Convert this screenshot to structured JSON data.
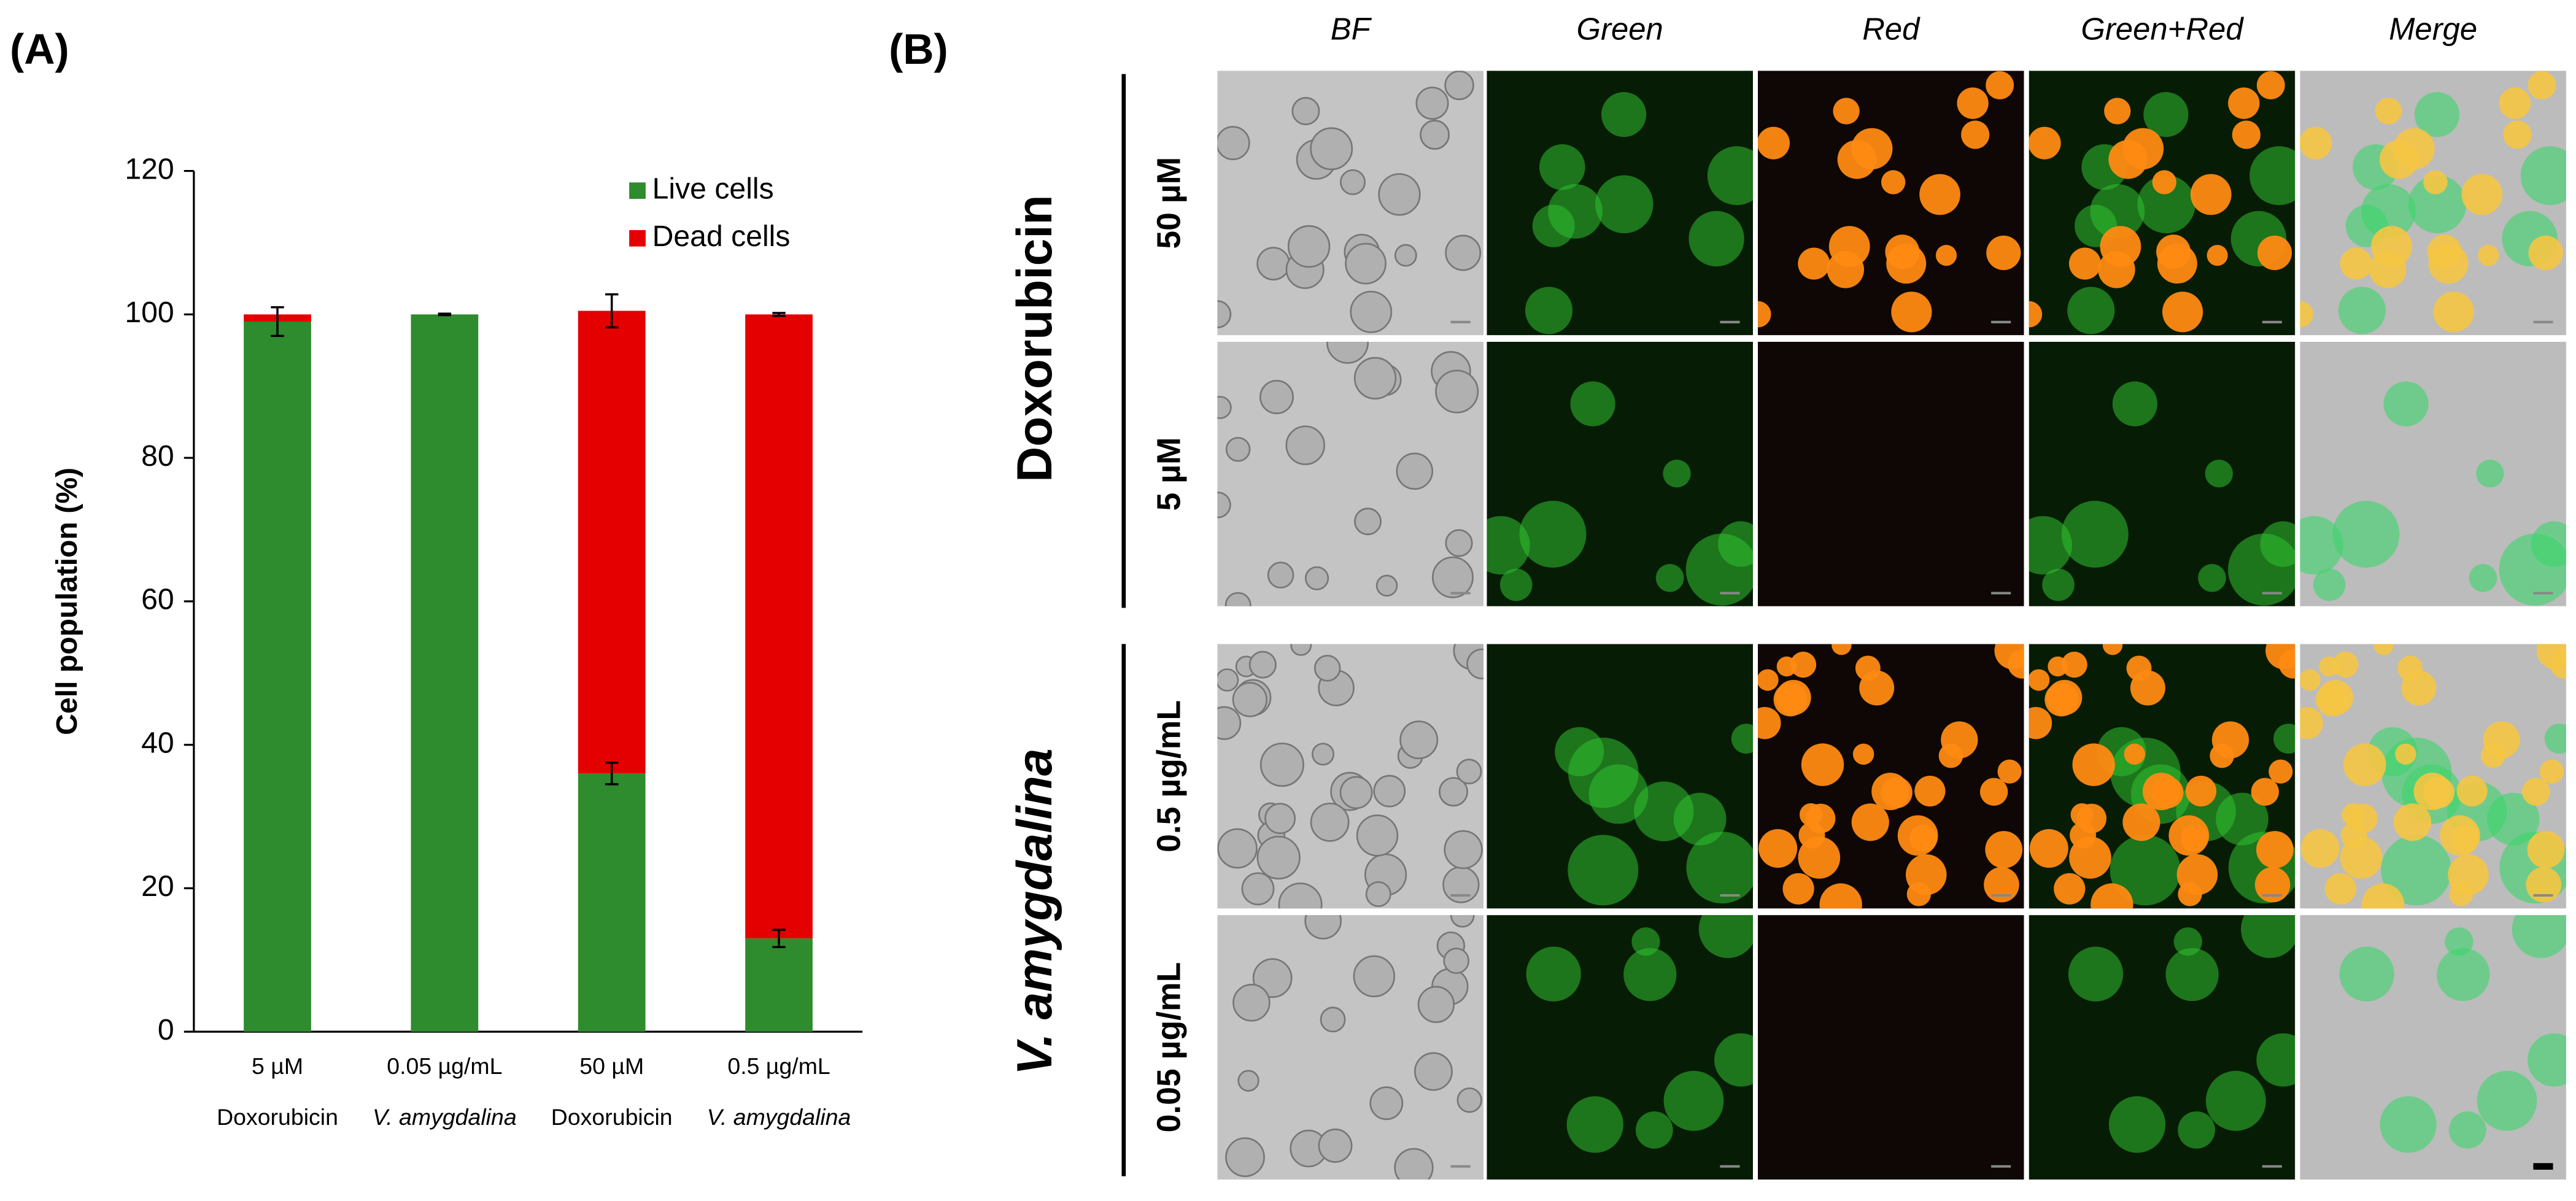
{
  "chart_data": {
    "type": "bar",
    "stacked": true,
    "y_label": "Cell population (%)",
    "categories": [
      [
        "5 µM",
        "Doxorubicin"
      ],
      [
        "0.05 µg/mL",
        "V. amygdalina"
      ],
      [
        "50 µM",
        "Doxorubicin"
      ],
      [
        "0.5 µg/mL",
        "V. amygdalina"
      ]
    ],
    "italic_second_line": [
      false,
      true,
      false,
      true
    ],
    "series": [
      {
        "name": "Live cells",
        "color": "#2e8b2e",
        "values": [
          99,
          100,
          36,
          13
        ],
        "errors": [
          2,
          0.1,
          1.5,
          1.2
        ]
      },
      {
        "name": "Dead cells",
        "color": "#e50000",
        "values": [
          1,
          0,
          64.5,
          87
        ],
        "errors": [
          0,
          0,
          2.3,
          0.2
        ]
      }
    ],
    "ylim": [
      0,
      120
    ],
    "yticks": [
      0,
      20,
      40,
      60,
      80,
      100,
      120
    ],
    "grid": false,
    "legend": "top-right"
  },
  "panel_a": {
    "label": "(A)"
  },
  "panel_b": {
    "label": "(B)",
    "columns": [
      "BF",
      "Green",
      "Red",
      "Green+Red",
      "Merge"
    ],
    "groups": [
      {
        "name": "Doxorubicin",
        "rows": [
          "50 µM",
          "5 µM"
        ]
      },
      {
        "name": "V. amygdalina",
        "rows": [
          "0.5 µg/mL",
          "0.05 µg/mL"
        ]
      }
    ]
  }
}
